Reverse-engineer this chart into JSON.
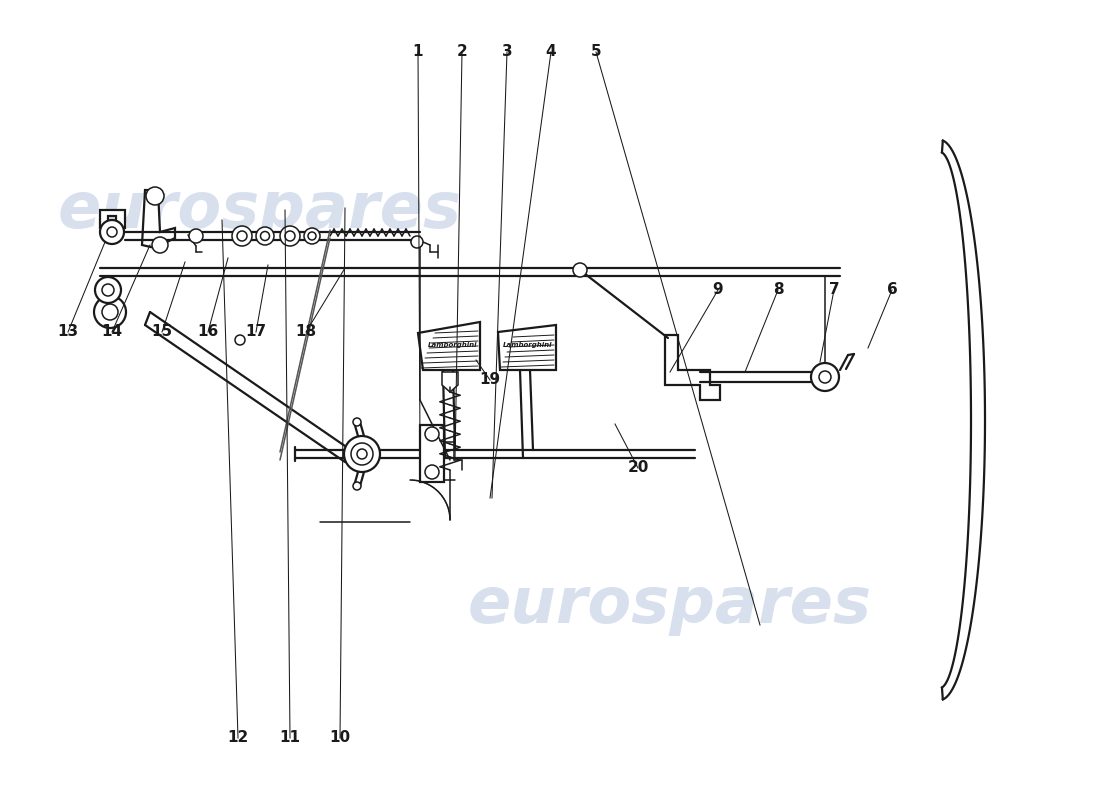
{
  "background_color": "#ffffff",
  "line_color": "#1a1a1a",
  "watermark_color": "#c8d4e8",
  "figsize": [
    11.0,
    8.0
  ],
  "dpi": 100,
  "top_callouts": [
    [
      "1",
      418,
      748,
      420,
      355
    ],
    [
      "2",
      462,
      748,
      455,
      340
    ],
    [
      "3",
      507,
      748,
      492,
      302
    ],
    [
      "4",
      551,
      748,
      490,
      302
    ],
    [
      "5",
      596,
      748,
      760,
      175
    ]
  ],
  "right_callouts": [
    [
      "6",
      892,
      510,
      868,
      452
    ],
    [
      "7",
      834,
      510,
      820,
      438
    ],
    [
      "8",
      778,
      510,
      745,
      428
    ],
    [
      "9",
      718,
      510,
      670,
      428
    ]
  ],
  "bottom_callouts": [
    [
      "10",
      340,
      62,
      345,
      592
    ],
    [
      "11",
      290,
      62,
      285,
      590
    ],
    [
      "12",
      238,
      62,
      222,
      580
    ]
  ],
  "left_callouts": [
    [
      "13",
      68,
      468,
      105,
      558
    ],
    [
      "14",
      112,
      468,
      150,
      555
    ],
    [
      "15",
      162,
      468,
      185,
      538
    ],
    [
      "16",
      208,
      468,
      228,
      542
    ],
    [
      "17",
      256,
      468,
      268,
      535
    ],
    [
      "18",
      306,
      468,
      345,
      532
    ]
  ],
  "inside_callouts": [
    [
      "19",
      490,
      420,
      476,
      440
    ],
    [
      "20",
      638,
      332,
      615,
      376
    ]
  ]
}
